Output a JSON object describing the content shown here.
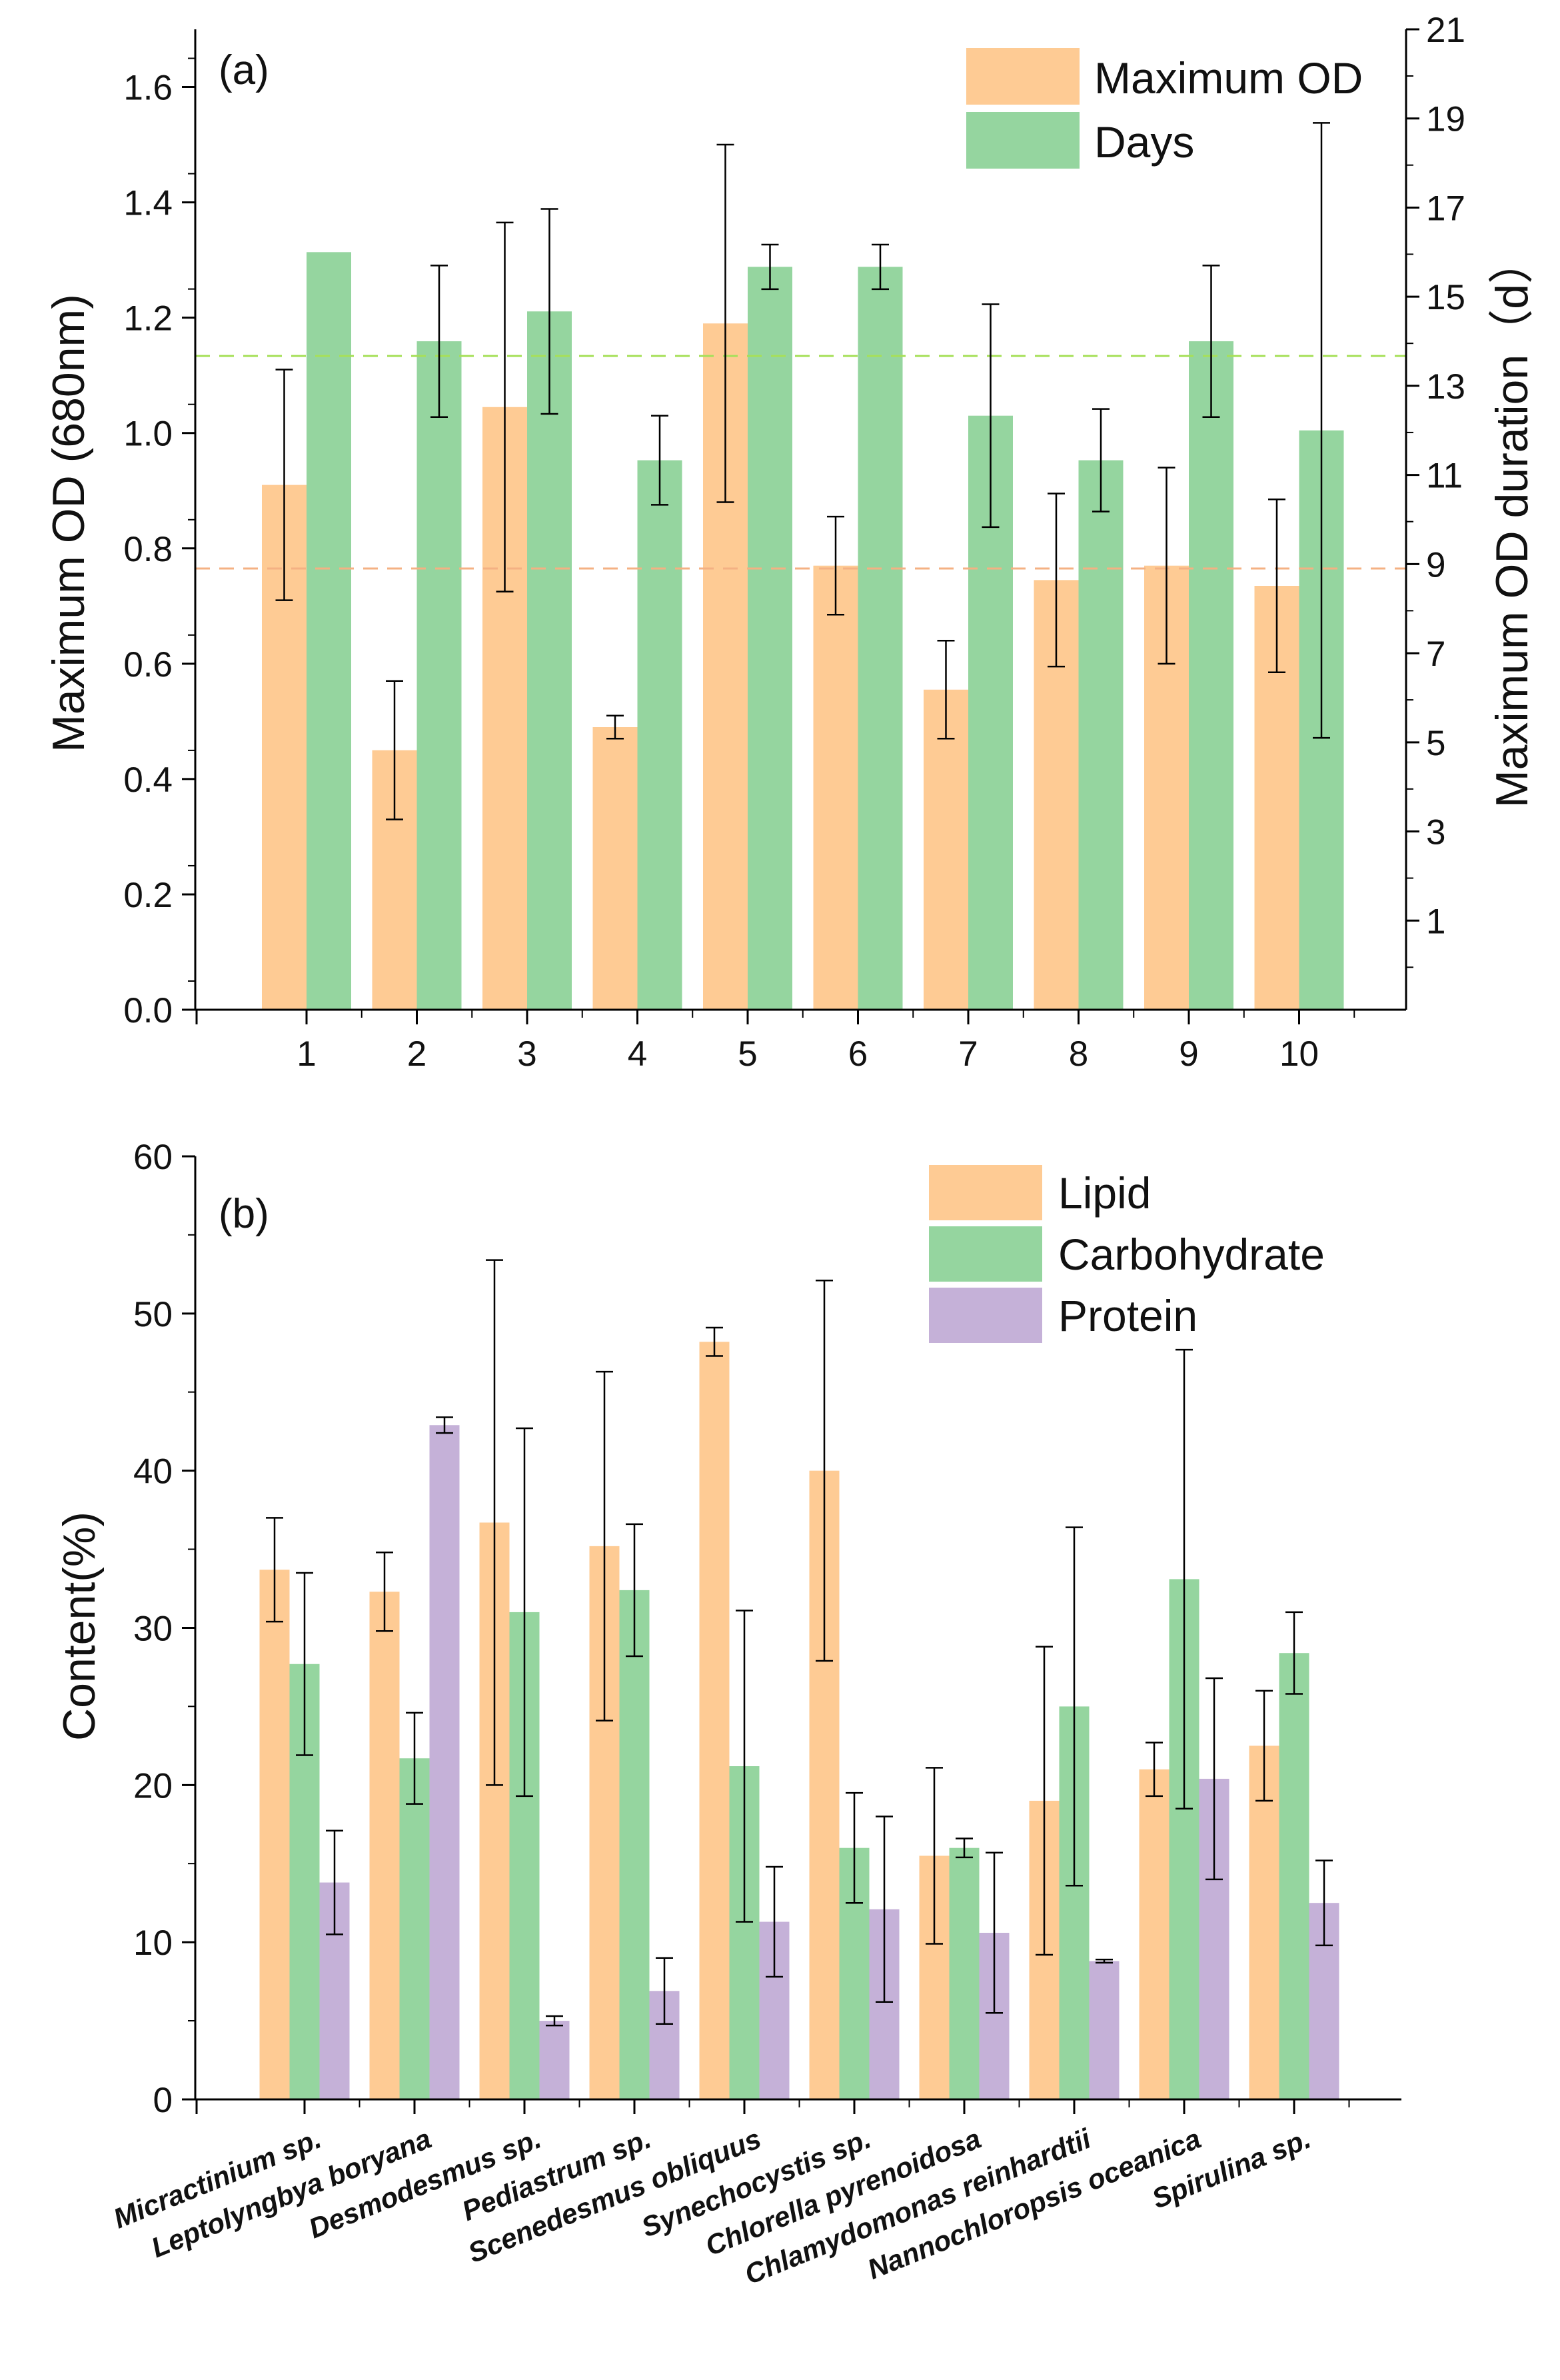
{
  "colors": {
    "od": "#FECB94",
    "days": "#95D59F",
    "lipid": "#FECB94",
    "carb": "#95D59F",
    "protein": "#C5B1D8",
    "od_ref": "#F4B183",
    "days_ref": "#A6E05A",
    "axis": "#000000"
  },
  "chart_data": [
    {
      "type": "bar",
      "panel_label": "(a)",
      "categories": [
        "1",
        "2",
        "3",
        "4",
        "5",
        "6",
        "7",
        "8",
        "9",
        "10"
      ],
      "ylabel": "Maximum OD (680nm)",
      "ylabel_right": "Maximum OD duration（d）",
      "ylim": [
        0,
        1.7
      ],
      "yticks": [
        "0.0",
        "0.2",
        "0.4",
        "0.6",
        "0.8",
        "1.0",
        "1.2",
        "1.4",
        "1.6"
      ],
      "ylim_right": [
        -1,
        21
      ],
      "yticks_right": [
        "1",
        "3",
        "5",
        "7",
        "9",
        "11",
        "13",
        "15",
        "17",
        "19",
        "21"
      ],
      "series": [
        {
          "name": "Maximum OD",
          "axis": "left",
          "values": [
            0.91,
            0.45,
            1.045,
            0.49,
            1.19,
            0.77,
            0.555,
            0.745,
            0.77,
            0.735
          ],
          "errors": [
            0.2,
            0.12,
            0.32,
            0.02,
            0.31,
            0.085,
            0.085,
            0.15,
            0.17,
            0.15
          ]
        },
        {
          "name": "Days",
          "axis": "right",
          "values": [
            16,
            14,
            14.67,
            11.33,
            15.67,
            15.67,
            12.33,
            11.33,
            14,
            12
          ],
          "errors": [
            0,
            1.7,
            2.3,
            1.0,
            0.5,
            0.5,
            2.5,
            1.15,
            1.7,
            6.9
          ]
        }
      ],
      "reference_lines": [
        {
          "series": "Maximum OD",
          "value": 0.765
        },
        {
          "series": "Days",
          "value": 13.67
        }
      ],
      "legend_position": "top-right"
    },
    {
      "type": "bar",
      "panel_label": "(b)",
      "categories": [
        "Micractinium sp.",
        "Leptolyngbya boryana",
        "Desmodesmus sp.",
        "Pediastrum sp.",
        "Scenedesmus obliquus",
        "Synechocystis sp.",
        "Chlorella pyrenoidosa",
        "Chlamydomonas reinhardtii",
        "Nannochloropsis oceanica",
        "Spirulina sp."
      ],
      "ylabel": "Content(%)",
      "ylim": [
        0,
        60
      ],
      "yticks": [
        "0",
        "10",
        "20",
        "30",
        "40",
        "50",
        "60"
      ],
      "series": [
        {
          "name": "Lipid",
          "values": [
            33.7,
            32.3,
            36.7,
            35.2,
            48.2,
            40.0,
            15.5,
            19.0,
            21.0,
            22.5
          ],
          "errors": [
            3.3,
            2.5,
            16.7,
            11.1,
            0.9,
            12.1,
            5.6,
            9.8,
            1.7,
            3.5
          ]
        },
        {
          "name": "Carbohydrate",
          "values": [
            27.7,
            21.7,
            31.0,
            32.4,
            21.2,
            16.0,
            16.0,
            25.0,
            33.1,
            28.4
          ],
          "errors": [
            5.8,
            2.9,
            11.7,
            4.2,
            9.9,
            3.5,
            0.6,
            11.4,
            14.6,
            2.6
          ]
        },
        {
          "name": "Protein",
          "values": [
            13.8,
            42.9,
            5.0,
            6.9,
            11.3,
            12.1,
            10.6,
            8.8,
            20.4,
            12.5
          ],
          "errors": [
            3.3,
            0.5,
            0.3,
            2.1,
            3.5,
            5.9,
            5.1,
            0.1,
            6.4,
            2.7
          ]
        }
      ],
      "legend_position": "top-right"
    }
  ]
}
